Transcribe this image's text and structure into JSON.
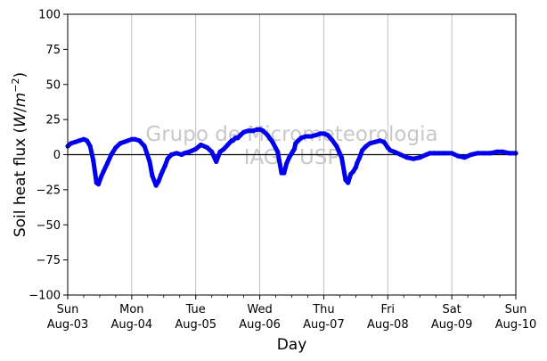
{
  "chart_data": {
    "type": "line",
    "xlabel": "Day",
    "ylabel_main": "Soil heat flux (",
    "ylabel_unit_w": "W",
    "ylabel_unit_slash": "/",
    "ylabel_unit_m": "m",
    "ylabel_unit_exp": "−2",
    "ylabel_close": ")",
    "ylim": [
      -100,
      100
    ],
    "yticks": [
      {
        "value": 100,
        "label": "100"
      },
      {
        "value": 75,
        "label": "75"
      },
      {
        "value": 50,
        "label": "50"
      },
      {
        "value": 25,
        "label": "25"
      },
      {
        "value": 0,
        "label": "0"
      },
      {
        "value": -25,
        "label": "−25"
      },
      {
        "value": -50,
        "label": "−50"
      },
      {
        "value": -75,
        "label": "−75"
      },
      {
        "value": -100,
        "label": "−100"
      }
    ],
    "xlim": [
      "2025-08-03",
      "2025-08-10"
    ],
    "xticks": [
      {
        "value": 0,
        "day": "Sun",
        "date": "Aug-03"
      },
      {
        "value": 1,
        "day": "Mon",
        "date": "Aug-04"
      },
      {
        "value": 2,
        "day": "Tue",
        "date": "Aug-05"
      },
      {
        "value": 3,
        "day": "Wed",
        "date": "Aug-06"
      },
      {
        "value": 4,
        "day": "Thu",
        "date": "Aug-07"
      },
      {
        "value": 5,
        "day": "Fri",
        "date": "Aug-08"
      },
      {
        "value": 6,
        "day": "Sat",
        "date": "Aug-09"
      },
      {
        "value": 7,
        "day": "Sun",
        "date": "Aug-10"
      }
    ],
    "grid": "vertical at major day ticks",
    "zero_line": true,
    "watermark_line1": "Grupo de Micrometeorologia",
    "watermark_line2": "IAG / USP",
    "series": [
      {
        "color": "#0000ee",
        "x": [
          0.0,
          0.05,
          0.12,
          0.18,
          0.25,
          0.3,
          0.35,
          0.4,
          0.45,
          0.48,
          0.52,
          0.56,
          0.62,
          0.68,
          0.75,
          0.82,
          0.88,
          0.94,
          1.0,
          1.05,
          1.12,
          1.2,
          1.28,
          1.32,
          1.38,
          1.42,
          1.46,
          1.48,
          1.52,
          1.56,
          1.62,
          1.7,
          1.78,
          1.82,
          1.86,
          1.9,
          1.95,
          2.0,
          2.08,
          2.18,
          2.25,
          2.32,
          2.38,
          2.44,
          2.5,
          2.56,
          2.58,
          2.62,
          2.66,
          2.7,
          2.75,
          2.82,
          2.9,
          2.96,
          3.0,
          3.05,
          3.12,
          3.2,
          3.28,
          3.34,
          3.38,
          3.42,
          3.46,
          3.5,
          3.54,
          3.56,
          3.6,
          3.65,
          3.72,
          3.8,
          3.88,
          3.95,
          4.0,
          4.06,
          4.12,
          4.2,
          4.28,
          4.34,
          4.38,
          4.42,
          4.46,
          4.5,
          4.52,
          4.56,
          4.6,
          4.66,
          4.72,
          4.8,
          4.88,
          4.94,
          5.0,
          5.04,
          5.1,
          5.2,
          5.3,
          5.4,
          5.5,
          5.6,
          5.66,
          5.72,
          5.8,
          5.88,
          6.0,
          6.1,
          6.2,
          6.3,
          6.4,
          6.5,
          6.6,
          6.7,
          6.8,
          6.9,
          7.0
        ],
        "y": [
          6,
          8,
          9,
          10,
          11,
          10,
          6,
          -4,
          -20,
          -21,
          -16,
          -12,
          -6,
          0,
          5,
          8,
          9,
          10,
          11,
          11,
          10,
          6,
          -5,
          -15,
          -22,
          -19,
          -14,
          -12,
          -8,
          -3,
          0,
          1,
          0,
          1,
          1.5,
          2,
          3,
          4,
          7,
          5,
          2,
          -5,
          2,
          4,
          7,
          10,
          10,
          12,
          12,
          14,
          16,
          17,
          17,
          18,
          18,
          17,
          14,
          9,
          2,
          -13,
          -13,
          -6,
          -2,
          1,
          4,
          8,
          10,
          12,
          13,
          13,
          14,
          15,
          15,
          14,
          11,
          6,
          -2,
          -18,
          -20,
          -14,
          -12,
          -9,
          -6,
          -2,
          3,
          6,
          8,
          9,
          10,
          9,
          5,
          3,
          2,
          0,
          -2,
          -3,
          -2,
          0,
          1,
          1,
          1,
          1,
          1,
          -1,
          -2,
          0,
          1,
          1,
          1,
          2,
          2,
          1,
          1
        ]
      }
    ]
  }
}
